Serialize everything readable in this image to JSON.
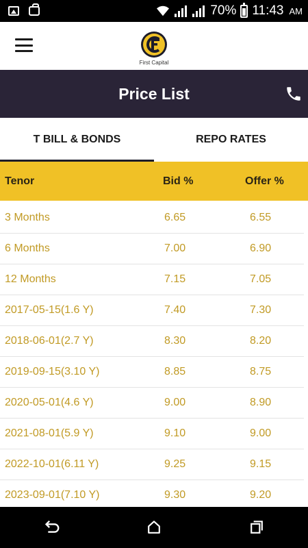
{
  "status_bar": {
    "battery_percent": "70%",
    "time": "11:43",
    "ampm": "AM",
    "icons": [
      "image-icon",
      "bag-icon",
      "wifi-icon",
      "signal-icon",
      "signal-icon",
      "battery-icon"
    ]
  },
  "header": {
    "logo_text": "First Capital",
    "brand_colors": {
      "primary": "#f0c126",
      "dark": "#2a2437"
    }
  },
  "title_bar": {
    "title": "Price List"
  },
  "tabs": [
    {
      "label": "T BILL & BONDS",
      "active": true
    },
    {
      "label": "REPO RATES",
      "active": false
    }
  ],
  "table": {
    "headers": {
      "tenor": "Tenor",
      "bid": "Bid %",
      "offer": "Offer %"
    },
    "rows": [
      {
        "tenor": "3 Months",
        "bid": "6.65",
        "offer": "6.55"
      },
      {
        "tenor": "6 Months",
        "bid": "7.00",
        "offer": "6.90"
      },
      {
        "tenor": "12 Months",
        "bid": "7.15",
        "offer": "7.05"
      },
      {
        "tenor": "2017-05-15(1.6 Y)",
        "bid": "7.40",
        "offer": "7.30"
      },
      {
        "tenor": "2018-06-01(2.7 Y)",
        "bid": "8.30",
        "offer": "8.20"
      },
      {
        "tenor": "2019-09-15(3.10 Y)",
        "bid": "8.85",
        "offer": "8.75"
      },
      {
        "tenor": "2020-05-01(4.6 Y)",
        "bid": "9.00",
        "offer": "8.90"
      },
      {
        "tenor": "2021-08-01(5.9 Y)",
        "bid": "9.10",
        "offer": "9.00"
      },
      {
        "tenor": "2022-10-01(6.11 Y)",
        "bid": "9.25",
        "offer": "9.15"
      },
      {
        "tenor": "2023-09-01(7.10 Y)",
        "bid": "9.30",
        "offer": "9.20"
      }
    ]
  }
}
